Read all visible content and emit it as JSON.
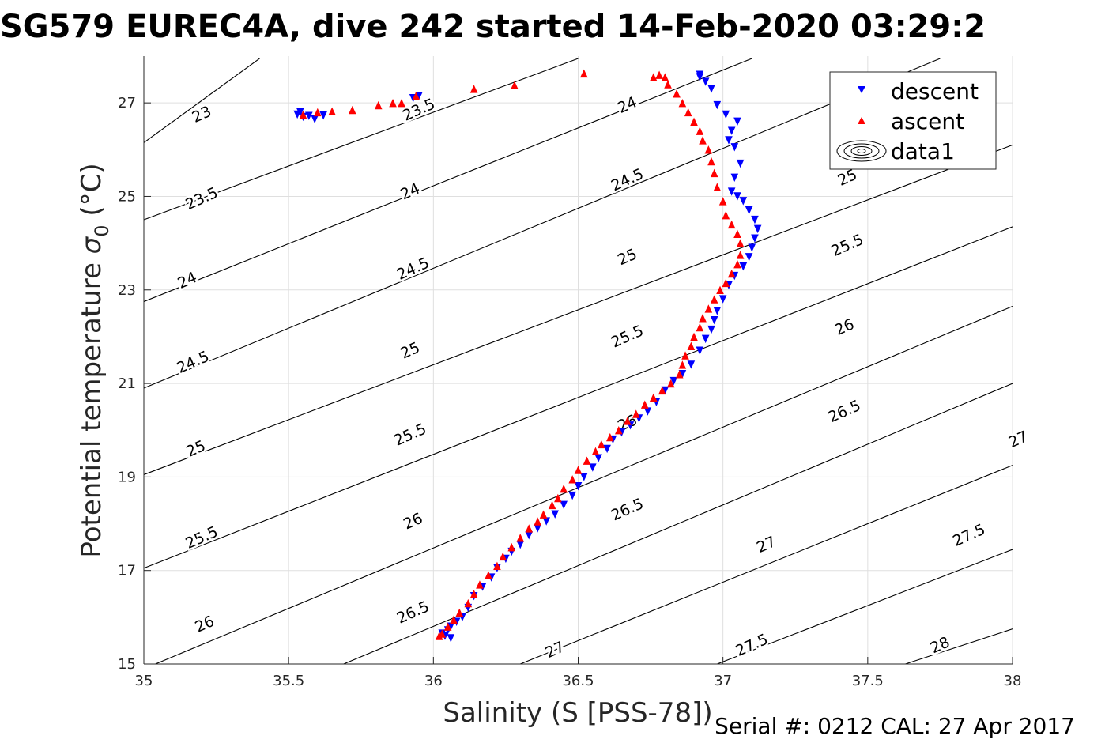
{
  "title": "SG579 EUREC4A, dive 242 started 14-Feb-2020 03:29:2",
  "footer": "Serial #: 0212  CAL: 27 Apr 2017",
  "colors": {
    "descent": "#0000ff",
    "ascent": "#ff0000",
    "contour": "#000000",
    "grid": "#dfdfdf",
    "axis": "#262626"
  },
  "chart_data": {
    "type": "scatter",
    "xlabel": "Salinity (S [PSS-78])",
    "ylabel_main": "Potential temperature ",
    "ylabel_symbol": "σ",
    "ylabel_subscript": "0",
    "ylabel_unit": " (°C)",
    "xlim": [
      35,
      38
    ],
    "ylim": [
      15,
      28
    ],
    "xticks": [
      35,
      35.5,
      36,
      36.5,
      37,
      37.5,
      38
    ],
    "xtick_labels": [
      "35",
      "35.5",
      "36",
      "36.5",
      "37",
      "37.5",
      "38"
    ],
    "yticks": [
      15,
      17,
      19,
      21,
      23,
      25,
      27
    ],
    "ytick_labels": [
      "15",
      "17",
      "19",
      "21",
      "23",
      "25",
      "27"
    ],
    "grid": true,
    "legend_position": "top-right",
    "legend": [
      {
        "label": "descent",
        "marker": "triangle-down"
      },
      {
        "label": "ascent",
        "marker": "triangle-up"
      },
      {
        "label": "data1",
        "marker": "contour"
      }
    ],
    "contours": {
      "levels": [
        23,
        23.5,
        24,
        24.5,
        25,
        25.5,
        26,
        26.5,
        27,
        27.5,
        28
      ],
      "label_texts": [
        "23",
        "23.5",
        "24",
        "24.5",
        "25",
        "25.5",
        "26",
        "26.5",
        "27",
        "27.5",
        "28"
      ],
      "lines": [
        {
          "level": "23",
          "x": [
            35,
            35.4
          ],
          "y": [
            26.15,
            27.95
          ]
        },
        {
          "level": "23.5",
          "x": [
            35,
            36.5
          ],
          "y": [
            24.5,
            27.95
          ]
        },
        {
          "level": "24",
          "x": [
            35,
            37.1
          ],
          "y": [
            22.75,
            27.95
          ]
        },
        {
          "level": "24.5",
          "x": [
            35,
            37.75
          ],
          "y": [
            20.9,
            27.95
          ]
        },
        {
          "level": "25",
          "x": [
            35,
            38
          ],
          "y": [
            19.05,
            26.1
          ]
        },
        {
          "level": "25.5",
          "x": [
            35,
            38
          ],
          "y": [
            17.05,
            24.35
          ]
        },
        {
          "level": "26",
          "x": [
            35.04,
            38
          ],
          "y": [
            15,
            22.65
          ]
        },
        {
          "level": "26.5",
          "x": [
            35.69,
            38
          ],
          "y": [
            15,
            21.0
          ]
        },
        {
          "level": "27",
          "x": [
            36.3,
            38
          ],
          "y": [
            15,
            19.25
          ]
        },
        {
          "level": "27.5",
          "x": [
            36.98,
            38
          ],
          "y": [
            15,
            17.45
          ]
        },
        {
          "level": "28",
          "x": [
            37.63,
            38
          ],
          "y": [
            15,
            15.75
          ]
        }
      ],
      "labels": [
        {
          "text": "23",
          "x": 35.2,
          "y": 26.75
        },
        {
          "text": "23.5",
          "x": 35.95,
          "y": 26.85
        },
        {
          "text": "24",
          "x": 36.67,
          "y": 26.95
        },
        {
          "text": "23.5",
          "x": 35.2,
          "y": 24.95
        },
        {
          "text": "24",
          "x": 35.92,
          "y": 25.1
        },
        {
          "text": "24.5",
          "x": 36.67,
          "y": 25.35
        },
        {
          "text": "25",
          "x": 37.43,
          "y": 25.4
        },
        {
          "text": "24",
          "x": 35.15,
          "y": 23.2
        },
        {
          "text": "24.5",
          "x": 35.93,
          "y": 23.45
        },
        {
          "text": "25",
          "x": 36.67,
          "y": 23.7
        },
        {
          "text": "25.5",
          "x": 37.43,
          "y": 23.95
        },
        {
          "text": "24.5",
          "x": 35.17,
          "y": 21.45
        },
        {
          "text": "25",
          "x": 35.92,
          "y": 21.7
        },
        {
          "text": "25.5",
          "x": 36.67,
          "y": 22.0
        },
        {
          "text": "26",
          "x": 37.42,
          "y": 22.2
        },
        {
          "text": "25",
          "x": 35.18,
          "y": 19.6
        },
        {
          "text": "25.5",
          "x": 35.92,
          "y": 19.9
        },
        {
          "text": "26",
          "x": 36.67,
          "y": 20.15
        },
        {
          "text": "26.5",
          "x": 37.42,
          "y": 20.4
        },
        {
          "text": "27",
          "x": 38.02,
          "y": 19.8
        },
        {
          "text": "25.5",
          "x": 35.2,
          "y": 17.7
        },
        {
          "text": "26",
          "x": 35.93,
          "y": 18.05
        },
        {
          "text": "26.5",
          "x": 36.67,
          "y": 18.3
        },
        {
          "text": "27",
          "x": 37.15,
          "y": 17.55
        },
        {
          "text": "27.5",
          "x": 37.85,
          "y": 17.75
        },
        {
          "text": "26",
          "x": 35.21,
          "y": 15.85
        },
        {
          "text": "26.5",
          "x": 35.93,
          "y": 16.1
        },
        {
          "text": "27",
          "x": 36.42,
          "y": 15.3
        },
        {
          "text": "27.5",
          "x": 37.1,
          "y": 15.4
        },
        {
          "text": "28",
          "x": 37.75,
          "y": 15.4
        }
      ]
    },
    "series": [
      {
        "name": "descent",
        "marker": "triangle-down",
        "x": [
          36.06,
          36.04,
          36.03,
          36.05,
          36.06,
          36.08,
          36.1,
          36.12,
          36.14,
          36.17,
          36.2,
          36.22,
          36.25,
          36.27,
          36.3,
          36.33,
          36.36,
          36.39,
          36.42,
          36.45,
          36.48,
          36.5,
          36.52,
          36.55,
          36.57,
          36.6,
          36.62,
          36.65,
          36.68,
          36.71,
          36.74,
          36.77,
          36.8,
          36.83,
          36.86,
          36.89,
          36.92,
          36.94,
          36.96,
          36.97,
          36.98,
          37.0,
          37.02,
          37.04,
          37.07,
          37.09,
          37.1,
          37.11,
          37.12,
          37.11,
          37.09,
          37.07,
          37.05,
          37.03,
          37.04,
          37.06,
          37.04,
          37.02,
          37.03,
          37.05,
          37.01,
          36.98,
          36.96,
          36.94,
          36.92,
          36.92,
          35.57,
          35.53,
          35.55,
          35.59,
          35.62,
          35.54,
          35.93,
          35.95
        ],
        "y": [
          15.55,
          15.6,
          15.65,
          15.72,
          15.8,
          15.9,
          16.0,
          16.2,
          16.45,
          16.65,
          16.85,
          17.05,
          17.25,
          17.4,
          17.55,
          17.75,
          17.9,
          18.05,
          18.2,
          18.4,
          18.6,
          18.8,
          19.0,
          19.2,
          19.4,
          19.6,
          19.8,
          19.95,
          20.1,
          20.25,
          20.4,
          20.6,
          20.85,
          21.05,
          21.2,
          21.4,
          21.7,
          21.95,
          22.15,
          22.35,
          22.55,
          22.8,
          23.1,
          23.3,
          23.5,
          23.7,
          23.9,
          24.1,
          24.3,
          24.5,
          24.7,
          24.9,
          25.0,
          25.1,
          25.4,
          25.7,
          26.05,
          26.2,
          26.4,
          26.6,
          26.75,
          26.95,
          27.3,
          27.45,
          27.55,
          27.6,
          26.72,
          26.75,
          26.7,
          26.65,
          26.73,
          26.8,
          27.1,
          27.15
        ]
      },
      {
        "name": "ascent",
        "marker": "triangle-up",
        "x": [
          36.02,
          36.03,
          36.05,
          36.07,
          36.09,
          36.12,
          36.14,
          36.16,
          36.19,
          36.22,
          36.24,
          36.27,
          36.3,
          36.33,
          36.36,
          36.38,
          36.41,
          36.43,
          36.45,
          36.48,
          36.5,
          36.53,
          36.56,
          36.58,
          36.61,
          36.64,
          36.67,
          36.7,
          36.73,
          36.76,
          36.79,
          36.82,
          36.85,
          36.86,
          36.87,
          36.89,
          36.9,
          36.92,
          36.93,
          36.95,
          36.97,
          36.99,
          37.01,
          37.03,
          37.05,
          37.06,
          37.06,
          37.05,
          37.03,
          37.01,
          37.0,
          36.98,
          36.97,
          36.96,
          36.95,
          36.93,
          36.92,
          36.9,
          36.88,
          36.86,
          36.84,
          36.81,
          36.78,
          36.8,
          35.55,
          35.6,
          35.65,
          35.72,
          35.81,
          35.86,
          35.89,
          35.94,
          36.14,
          36.28,
          36.52,
          36.76
        ],
        "y": [
          15.6,
          15.65,
          15.8,
          15.95,
          16.1,
          16.3,
          16.5,
          16.7,
          16.9,
          17.1,
          17.3,
          17.5,
          17.7,
          17.9,
          18.05,
          18.2,
          18.4,
          18.55,
          18.75,
          18.95,
          19.15,
          19.35,
          19.55,
          19.7,
          19.85,
          20.0,
          20.2,
          20.35,
          20.55,
          20.7,
          20.85,
          21.0,
          21.2,
          21.4,
          21.6,
          21.8,
          22.0,
          22.2,
          22.4,
          22.6,
          22.8,
          23.0,
          23.15,
          23.35,
          23.55,
          23.75,
          24.0,
          24.2,
          24.4,
          24.6,
          24.9,
          25.2,
          25.5,
          25.75,
          26.0,
          26.2,
          26.4,
          26.6,
          26.8,
          27.0,
          27.2,
          27.4,
          27.6,
          27.55,
          26.75,
          26.8,
          26.82,
          26.85,
          26.95,
          27.0,
          27.0,
          27.15,
          27.3,
          27.38,
          27.63,
          27.55
        ]
      }
    ]
  }
}
